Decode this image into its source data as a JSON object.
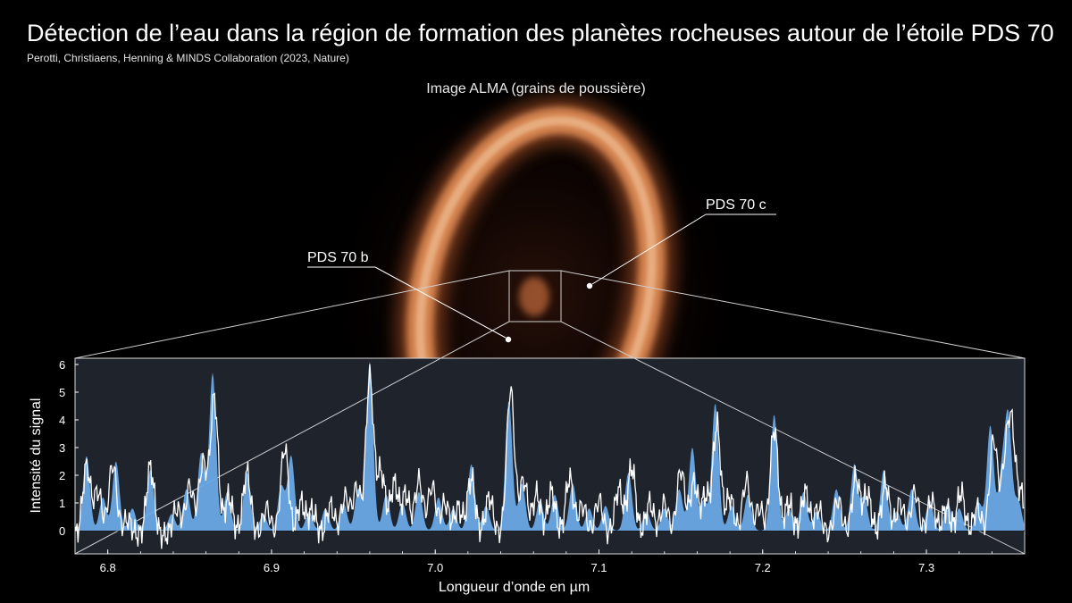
{
  "header": {
    "title": "Détection de l’eau dans la région de formation des planètes rocheuses autour de l’étoile PDS 70",
    "subtitle": "Perotti, Christiaens, Henning & MINDS Collaboration (2023, Nature)"
  },
  "image": {
    "caption": "Image ALMA (grains de poussière)",
    "planet_b_label": "PDS 70 b",
    "planet_c_label": "PDS 70 c"
  },
  "colors": {
    "background": "#000000",
    "panel_background": "#1f232c",
    "fill_model": "#6aa9e6",
    "line_data": "#ffffff",
    "ring": "#e8935a"
  },
  "chart_data": {
    "type": "area",
    "xlabel": "Longueur d’onde en µm",
    "ylabel": "Intensité du signal",
    "xlim": [
      6.78,
      7.36
    ],
    "ylim": [
      -0.5,
      6.2
    ],
    "x_ticks": [
      6.8,
      6.9,
      7.0,
      7.1,
      7.2,
      7.3
    ],
    "y_ticks": [
      0,
      1,
      2,
      3,
      4,
      5,
      6
    ],
    "grid": false,
    "legend": "none",
    "series": [
      {
        "style": "filled-area",
        "color": "#6aa9e6",
        "peaks": [
          [
            6.787,
            2.7
          ],
          [
            6.797,
            1.2
          ],
          [
            6.805,
            2.5
          ],
          [
            6.815,
            0.8
          ],
          [
            6.826,
            2.2
          ],
          [
            6.839,
            0.6
          ],
          [
            6.848,
            1.5
          ],
          [
            6.857,
            2.8
          ],
          [
            6.864,
            5.7
          ],
          [
            6.873,
            1.4
          ],
          [
            6.885,
            2.1
          ],
          [
            6.895,
            0.6
          ],
          [
            6.906,
            1.6
          ],
          [
            6.912,
            2.7
          ],
          [
            6.923,
            0.7
          ],
          [
            6.933,
            0.8
          ],
          [
            6.944,
            1.0
          ],
          [
            6.953,
            1.5
          ],
          [
            6.96,
            6.1
          ],
          [
            6.97,
            1.3
          ],
          [
            6.98,
            1.0
          ],
          [
            6.99,
            1.4
          ],
          [
            7.002,
            1.2
          ],
          [
            7.011,
            0.8
          ],
          [
            7.022,
            2.4
          ],
          [
            7.031,
            0.9
          ],
          [
            7.045,
            4.7
          ],
          [
            7.053,
            1.7
          ],
          [
            7.064,
            1.1
          ],
          [
            7.073,
            1.3
          ],
          [
            7.084,
            1.7
          ],
          [
            7.094,
            0.8
          ],
          [
            7.104,
            0.9
          ],
          [
            7.118,
            2.1
          ],
          [
            7.129,
            0.7
          ],
          [
            7.14,
            0.8
          ],
          [
            7.149,
            1.5
          ],
          [
            7.157,
            3.0
          ],
          [
            7.164,
            1.1
          ],
          [
            7.171,
            4.6
          ],
          [
            7.181,
            0.9
          ],
          [
            7.191,
            1.3
          ],
          [
            7.207,
            4.2
          ],
          [
            7.216,
            0.8
          ],
          [
            7.225,
            1.4
          ],
          [
            7.233,
            0.7
          ],
          [
            7.245,
            1.5
          ],
          [
            7.256,
            2.4
          ],
          [
            7.262,
            1.2
          ],
          [
            7.274,
            2.2
          ],
          [
            7.282,
            0.7
          ],
          [
            7.291,
            1.5
          ],
          [
            7.302,
            1.1
          ],
          [
            7.313,
            1.0
          ],
          [
            7.32,
            0.8
          ],
          [
            7.332,
            1.0
          ],
          [
            7.339,
            3.8
          ],
          [
            7.346,
            2.0
          ],
          [
            7.35,
            4.0
          ],
          [
            7.356,
            1.1
          ]
        ]
      },
      {
        "style": "line",
        "color": "#ffffff",
        "peaks": [
          [
            6.787,
            2.5
          ],
          [
            6.794,
            1.6
          ],
          [
            6.803,
            2.6
          ],
          [
            6.812,
            0.6
          ],
          [
            6.826,
            2.5
          ],
          [
            6.842,
            1.0
          ],
          [
            6.85,
            1.8
          ],
          [
            6.858,
            2.6
          ],
          [
            6.865,
            5.0
          ],
          [
            6.874,
            1.4
          ],
          [
            6.885,
            2.3
          ],
          [
            6.897,
            1.0
          ],
          [
            6.908,
            3.2
          ],
          [
            6.918,
            1.2
          ],
          [
            6.925,
            0.9
          ],
          [
            6.936,
            1.1
          ],
          [
            6.945,
            1.4
          ],
          [
            6.952,
            1.7
          ],
          [
            6.96,
            5.7
          ],
          [
            6.967,
            2.3
          ],
          [
            6.975,
            1.9
          ],
          [
            6.982,
            1.5
          ],
          [
            6.99,
            2.0
          ],
          [
            6.998,
            1.8
          ],
          [
            7.006,
            1.2
          ],
          [
            7.014,
            1.0
          ],
          [
            7.022,
            2.1
          ],
          [
            7.033,
            1.4
          ],
          [
            7.046,
            5.3
          ],
          [
            7.054,
            2.0
          ],
          [
            7.062,
            1.5
          ],
          [
            7.071,
            1.6
          ],
          [
            7.082,
            2.1
          ],
          [
            7.09,
            1.1
          ],
          [
            7.1,
            1.3
          ],
          [
            7.112,
            1.7
          ],
          [
            7.12,
            2.5
          ],
          [
            7.131,
            1.2
          ],
          [
            7.14,
            1.2
          ],
          [
            7.15,
            2.4
          ],
          [
            7.158,
            1.9
          ],
          [
            7.165,
            1.4
          ],
          [
            7.172,
            4.0
          ],
          [
            7.18,
            1.4
          ],
          [
            7.19,
            2.0
          ],
          [
            7.198,
            1.0
          ],
          [
            7.207,
            3.9
          ],
          [
            7.216,
            1.2
          ],
          [
            7.226,
            1.6
          ],
          [
            7.234,
            1.0
          ],
          [
            7.246,
            1.3
          ],
          [
            7.257,
            2.1
          ],
          [
            7.264,
            1.5
          ],
          [
            7.275,
            1.9
          ],
          [
            7.284,
            1.2
          ],
          [
            7.293,
            1.6
          ],
          [
            7.303,
            1.3
          ],
          [
            7.312,
            1.0
          ],
          [
            7.321,
            1.6
          ],
          [
            7.331,
            1.0
          ],
          [
            7.341,
            3.5
          ],
          [
            7.348,
            2.2
          ],
          [
            7.352,
            3.7
          ],
          [
            7.358,
            1.4
          ]
        ]
      }
    ]
  }
}
